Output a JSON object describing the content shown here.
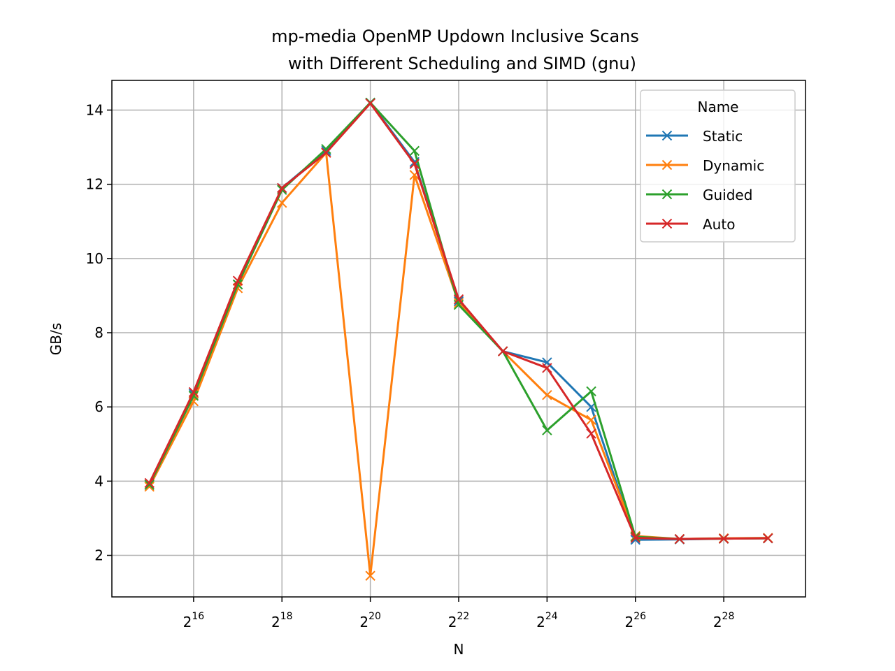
{
  "chart_data": {
    "type": "line",
    "title": [
      "mp-media OpenMP Updown Inclusive Scans",
      "with Different Scheduling and SIMD (gnu)"
    ],
    "xlabel": "N",
    "ylabel": "GB/s",
    "x_scale": "log2",
    "x_exponents": [
      15,
      16,
      17,
      18,
      19,
      20,
      21,
      22,
      23,
      24,
      25,
      26,
      27,
      28,
      29
    ],
    "x_tick_exponents": [
      16,
      18,
      20,
      22,
      24,
      26,
      28
    ],
    "xlim_exponents": [
      14.15,
      29.85
    ],
    "ylim": [
      0.88,
      14.8
    ],
    "y_ticks": [
      2,
      4,
      6,
      8,
      10,
      12,
      14
    ],
    "grid": true,
    "legend": {
      "title": "Name",
      "placement": "top-right"
    },
    "series": [
      {
        "name": "Static",
        "color": "#1f77b4",
        "marker": "x",
        "values": [
          3.9,
          6.35,
          9.3,
          11.9,
          12.9,
          14.2,
          12.6,
          8.85,
          7.5,
          7.2,
          6.0,
          2.42,
          2.43,
          2.45,
          2.46
        ]
      },
      {
        "name": "Dynamic",
        "color": "#ff7f0e",
        "marker": "x",
        "values": [
          3.85,
          6.15,
          9.2,
          11.5,
          12.85,
          1.45,
          12.25,
          8.8,
          7.5,
          6.32,
          5.65,
          2.52,
          2.44,
          2.46,
          2.47
        ]
      },
      {
        "name": "Guided",
        "color": "#2ca02c",
        "marker": "x",
        "values": [
          3.9,
          6.3,
          9.3,
          11.85,
          12.95,
          14.2,
          12.9,
          8.75,
          7.5,
          5.37,
          6.42,
          2.5,
          2.44,
          2.45,
          2.46
        ]
      },
      {
        "name": "Auto",
        "color": "#d62728",
        "marker": "x",
        "values": [
          3.95,
          6.4,
          9.4,
          11.9,
          12.85,
          14.18,
          12.55,
          8.9,
          7.5,
          7.05,
          5.28,
          2.47,
          2.44,
          2.45,
          2.46
        ]
      }
    ]
  }
}
